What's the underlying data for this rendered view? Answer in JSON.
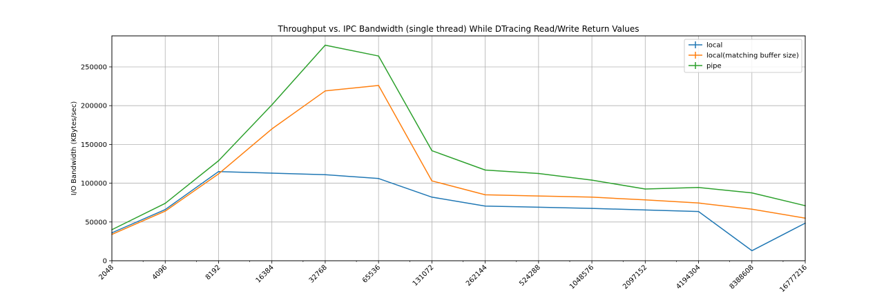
{
  "chart_data": {
    "type": "line",
    "title": "Throughput vs. IPC Bandwidth (single thread) While DTracing Read/Write Return Values",
    "xlabel": "",
    "ylabel": "I/O Bandwidth (KBytes/sec)",
    "x_scale": "log2",
    "x": [
      2048,
      4096,
      8192,
      16384,
      32768,
      65536,
      131072,
      262144,
      524288,
      1048576,
      2097152,
      4194304,
      8388608,
      16777216
    ],
    "x_tick_labels": [
      "2048",
      "4096",
      "8192",
      "16384",
      "32768",
      "65536",
      "131072",
      "262144",
      "524288",
      "1048576",
      "2097152",
      "4194304",
      "8388608",
      "16777216"
    ],
    "y_ticks": [
      0,
      50000,
      100000,
      150000,
      200000,
      250000
    ],
    "y_tick_labels": [
      "0",
      "50000",
      "100000",
      "150000",
      "200000",
      "250000"
    ],
    "ylim": [
      0,
      290000
    ],
    "grid": true,
    "legend_position": "top-right",
    "series": [
      {
        "name": "local",
        "color": "#1f77b4",
        "values": [
          36000,
          66000,
          115000,
          113000,
          111000,
          106000,
          82000,
          70500,
          69000,
          67500,
          65500,
          63500,
          13000,
          48500
        ]
      },
      {
        "name": "local(matching buffer size)",
        "color": "#ff7f0e",
        "values": [
          34000,
          64000,
          112000,
          170000,
          219000,
          226000,
          103000,
          85000,
          83500,
          82000,
          78500,
          74500,
          66500,
          55000
        ]
      },
      {
        "name": "pipe",
        "color": "#2ca02c",
        "values": [
          40000,
          74000,
          129000,
          201000,
          278000,
          264000,
          142000,
          117000,
          112500,
          104000,
          92500,
          94500,
          87500,
          71000
        ]
      }
    ]
  }
}
